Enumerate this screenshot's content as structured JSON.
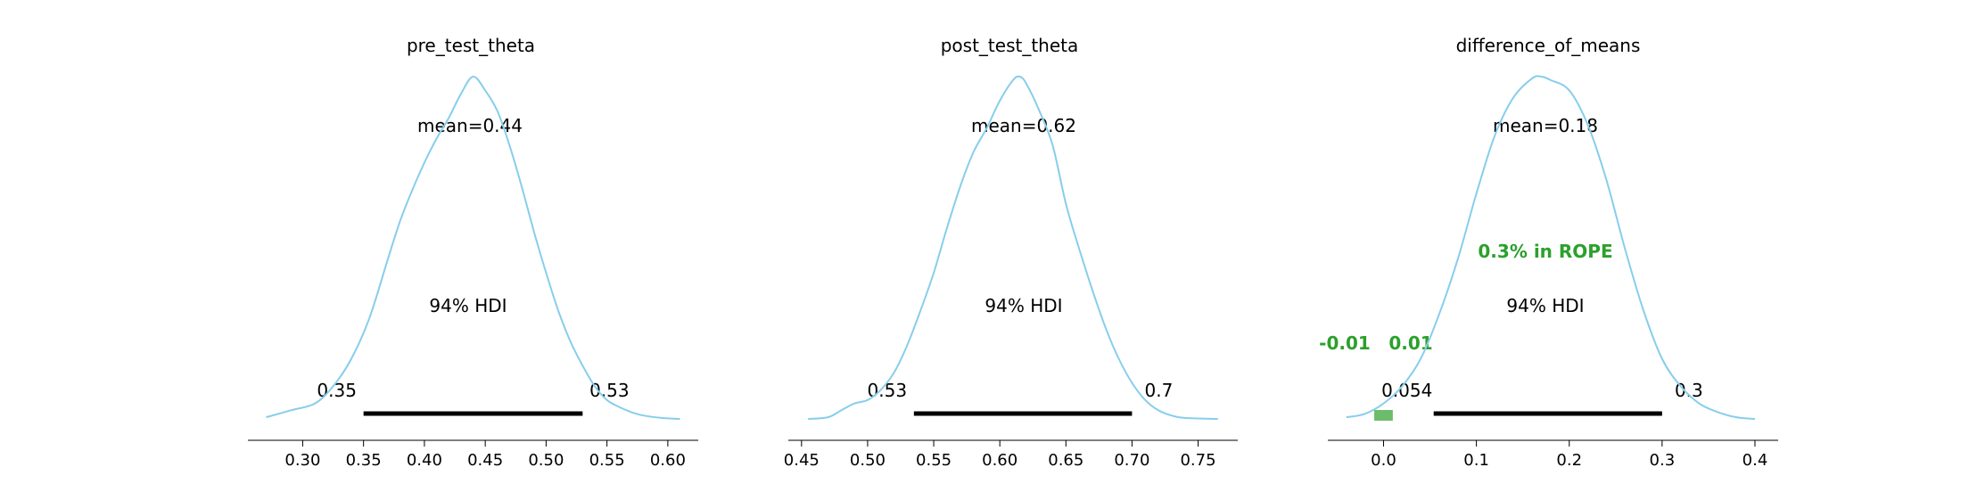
{
  "chart_data": [
    {
      "type": "area",
      "title": "pre_test_theta",
      "mean_label": "mean=0.44",
      "hdi_label": "94% HDI",
      "hdi": [
        0.35,
        0.53
      ],
      "hdi_labels": [
        "0.35",
        "0.53"
      ],
      "xlim": [
        0.255,
        0.625
      ],
      "xticks": [
        0.3,
        0.35,
        0.4,
        0.45,
        0.5,
        0.55,
        0.6
      ],
      "xtick_labels": [
        "0.30",
        "0.35",
        "0.40",
        "0.45",
        "0.50",
        "0.55",
        "0.60"
      ],
      "curve_color": "#87ceeb",
      "density": {
        "x": [
          0.27,
          0.29,
          0.31,
          0.325,
          0.34,
          0.355,
          0.37,
          0.38,
          0.39,
          0.4,
          0.41,
          0.42,
          0.43,
          0.44,
          0.45,
          0.46,
          0.47,
          0.48,
          0.49,
          0.5,
          0.51,
          0.52,
          0.53,
          0.54,
          0.55,
          0.56,
          0.57,
          0.58,
          0.595,
          0.61
        ],
        "y": [
          0.01,
          0.03,
          0.05,
          0.1,
          0.18,
          0.3,
          0.47,
          0.58,
          0.67,
          0.75,
          0.82,
          0.88,
          0.95,
          1.0,
          0.96,
          0.9,
          0.8,
          0.68,
          0.55,
          0.43,
          0.32,
          0.23,
          0.16,
          0.1,
          0.06,
          0.04,
          0.025,
          0.015,
          0.008,
          0.005
        ]
      }
    },
    {
      "type": "area",
      "title": "post_test_theta",
      "mean_label": "mean=0.62",
      "hdi_label": "94% HDI",
      "hdi": [
        0.535,
        0.7
      ],
      "hdi_labels": [
        "0.53",
        "0.7"
      ],
      "xlim": [
        0.44,
        0.78
      ],
      "xticks": [
        0.45,
        0.5,
        0.55,
        0.6,
        0.65,
        0.7,
        0.75
      ],
      "xtick_labels": [
        "0.45",
        "0.50",
        "0.55",
        "0.60",
        "0.65",
        "0.70",
        "0.75"
      ],
      "curve_color": "#87ceeb",
      "density": {
        "x": [
          0.455,
          0.47,
          0.48,
          0.49,
          0.5,
          0.51,
          0.52,
          0.53,
          0.54,
          0.55,
          0.56,
          0.57,
          0.58,
          0.59,
          0.6,
          0.61,
          0.615,
          0.62,
          0.63,
          0.64,
          0.65,
          0.66,
          0.67,
          0.68,
          0.69,
          0.7,
          0.71,
          0.72,
          0.73,
          0.74,
          0.765
        ],
        "y": [
          0.005,
          0.01,
          0.03,
          0.05,
          0.06,
          0.09,
          0.14,
          0.22,
          0.32,
          0.43,
          0.56,
          0.68,
          0.78,
          0.85,
          0.93,
          0.99,
          1.0,
          0.98,
          0.9,
          0.8,
          0.63,
          0.5,
          0.38,
          0.27,
          0.18,
          0.11,
          0.06,
          0.03,
          0.015,
          0.008,
          0.005
        ]
      }
    },
    {
      "type": "area",
      "title": "difference_of_means",
      "mean_label": "mean=0.18",
      "hdi_label": "94% HDI",
      "hdi": [
        0.054,
        0.3
      ],
      "hdi_labels": [
        "0.054",
        "0.3"
      ],
      "xlim": [
        -0.06,
        0.425
      ],
      "xticks": [
        0.0,
        0.1,
        0.2,
        0.3,
        0.4
      ],
      "xtick_labels": [
        "0.0",
        "0.1",
        "0.2",
        "0.3",
        "0.4"
      ],
      "curve_color": "#87ceeb",
      "rope": [
        -0.01,
        0.01
      ],
      "rope_labels": [
        "-0.01",
        "0.01"
      ],
      "rope_text": "0.3% in ROPE",
      "rope_color": "#2ca02c",
      "density": {
        "x": [
          -0.04,
          -0.02,
          0.0,
          0.02,
          0.04,
          0.06,
          0.08,
          0.1,
          0.12,
          0.14,
          0.16,
          0.17,
          0.18,
          0.2,
          0.22,
          0.24,
          0.26,
          0.28,
          0.3,
          0.32,
          0.34,
          0.36,
          0.38,
          0.4
        ],
        "y": [
          0.01,
          0.02,
          0.05,
          0.1,
          0.18,
          0.31,
          0.47,
          0.66,
          0.83,
          0.94,
          0.995,
          1.0,
          0.99,
          0.96,
          0.86,
          0.7,
          0.5,
          0.32,
          0.18,
          0.1,
          0.05,
          0.025,
          0.01,
          0.005
        ]
      }
    }
  ]
}
